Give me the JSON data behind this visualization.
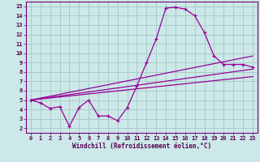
{
  "xlabel": "Windchill (Refroidissement éolien,°C)",
  "bg_color": "#cce8e8",
  "grid_color": "#aacccc",
  "line_color": "#990099",
  "xlim": [
    -0.5,
    23.5
  ],
  "ylim": [
    1.5,
    15.5
  ],
  "xticks": [
    0,
    1,
    2,
    3,
    4,
    5,
    6,
    7,
    8,
    9,
    10,
    11,
    12,
    13,
    14,
    15,
    16,
    17,
    18,
    19,
    20,
    21,
    22,
    23
  ],
  "yticks": [
    2,
    3,
    4,
    5,
    6,
    7,
    8,
    9,
    10,
    11,
    12,
    13,
    14,
    15
  ],
  "series1_x": [
    0,
    1,
    2,
    3,
    4,
    5,
    6,
    7,
    8,
    9,
    10,
    11,
    12,
    13,
    14,
    15,
    16,
    17,
    18,
    19,
    20,
    21,
    22,
    23
  ],
  "series1_y": [
    5.0,
    4.7,
    4.1,
    4.3,
    2.2,
    4.2,
    5.0,
    3.3,
    3.3,
    2.8,
    4.2,
    6.5,
    9.0,
    11.5,
    14.8,
    14.9,
    14.7,
    14.0,
    12.2,
    9.7,
    8.8,
    8.8,
    8.8,
    8.5
  ],
  "series2_x": [
    0,
    23
  ],
  "series2_y": [
    5.0,
    9.7
  ],
  "series3_x": [
    0,
    23
  ],
  "series3_y": [
    5.0,
    8.3
  ],
  "series4_x": [
    0,
    23
  ],
  "series4_y": [
    5.0,
    7.5
  ]
}
